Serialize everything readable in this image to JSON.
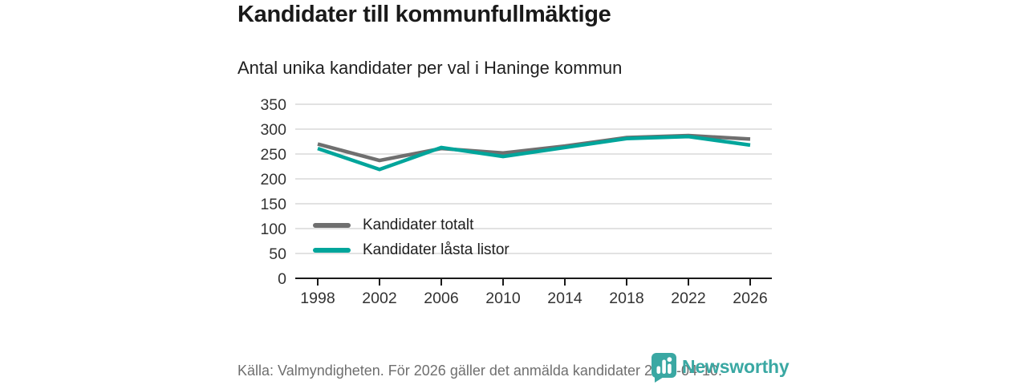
{
  "chart_data": {
    "type": "line",
    "title": "Kandidater till kommunfullmäktige",
    "subtitle": "Antal unika kandidater per val i Haninge kommun",
    "x": [
      1998,
      2002,
      2006,
      2010,
      2014,
      2018,
      2022,
      2026
    ],
    "series": [
      {
        "name": "Kandidater totalt",
        "color": "#6f6f6f",
        "values": [
          270,
          237,
          261,
          252,
          266,
          283,
          287,
          280
        ]
      },
      {
        "name": "Kandidater låsta listor",
        "color": "#00a59b",
        "values": [
          261,
          219,
          263,
          245,
          263,
          281,
          285,
          268
        ]
      }
    ],
    "xlabel": "",
    "ylabel": "",
    "yticks": [
      0,
      50,
      100,
      150,
      200,
      250,
      300,
      350
    ],
    "ylim": [
      0,
      350
    ],
    "grid": true,
    "legend_position": "inside-left"
  },
  "footer": {
    "source": "Källa: Valmyndigheten. För 2026 gäller det anmälda kandidater 2026-04-10."
  },
  "branding": {
    "logo_text": "Newsworthy",
    "logo_color": "#3aa8a3",
    "logo_icon": "bar-chart-bubble-icon"
  },
  "colors": {
    "gridline": "#d9d9d9",
    "axis": "#1a1a1a",
    "tick_label": "#333333",
    "footer_text": "#6f6f6f",
    "background": "#ffffff"
  }
}
